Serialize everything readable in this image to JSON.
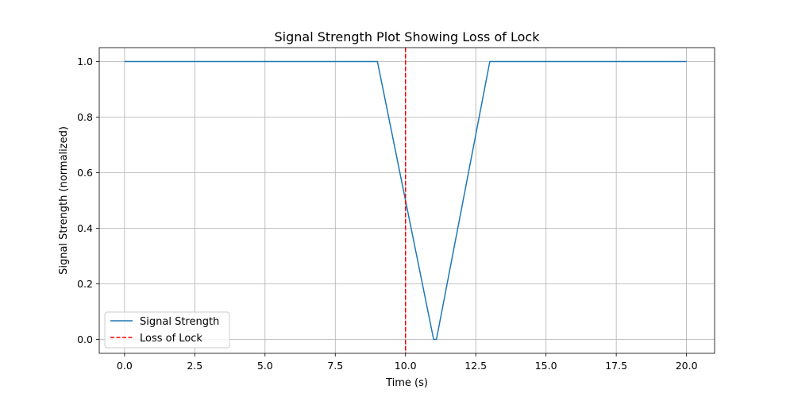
{
  "chart_data": {
    "type": "line",
    "title": "Signal Strength Plot Showing Loss of Lock",
    "xlabel": "Time (s)",
    "ylabel": "Signal Strength (normalized)",
    "xlim": [
      -0.9,
      21.0
    ],
    "ylim": [
      -0.05,
      1.05
    ],
    "grid": true,
    "legend_position": "lower-left",
    "x_ticks": [
      0.0,
      2.5,
      5.0,
      7.5,
      10.0,
      12.5,
      15.0,
      17.5,
      20.0
    ],
    "x_tick_labels": [
      "0.0",
      "2.5",
      "5.0",
      "7.5",
      "10.0",
      "12.5",
      "15.0",
      "17.5",
      "20.0"
    ],
    "y_ticks": [
      0.0,
      0.2,
      0.4,
      0.6,
      0.8,
      1.0
    ],
    "y_tick_labels": [
      "0.0",
      "0.2",
      "0.4",
      "0.6",
      "0.8",
      "1.0"
    ],
    "series": [
      {
        "name": "Signal Strength",
        "color": "#1f77b4",
        "style": "solid",
        "x": [
          0,
          9,
          11,
          11.1,
          13,
          20
        ],
        "y": [
          1.0,
          1.0,
          0.0,
          0.0,
          1.0,
          1.0
        ]
      }
    ],
    "annotations": [
      {
        "type": "vline",
        "name": "Loss of Lock",
        "x": 10.0,
        "color": "#ff0000",
        "style": "dashed"
      }
    ]
  }
}
